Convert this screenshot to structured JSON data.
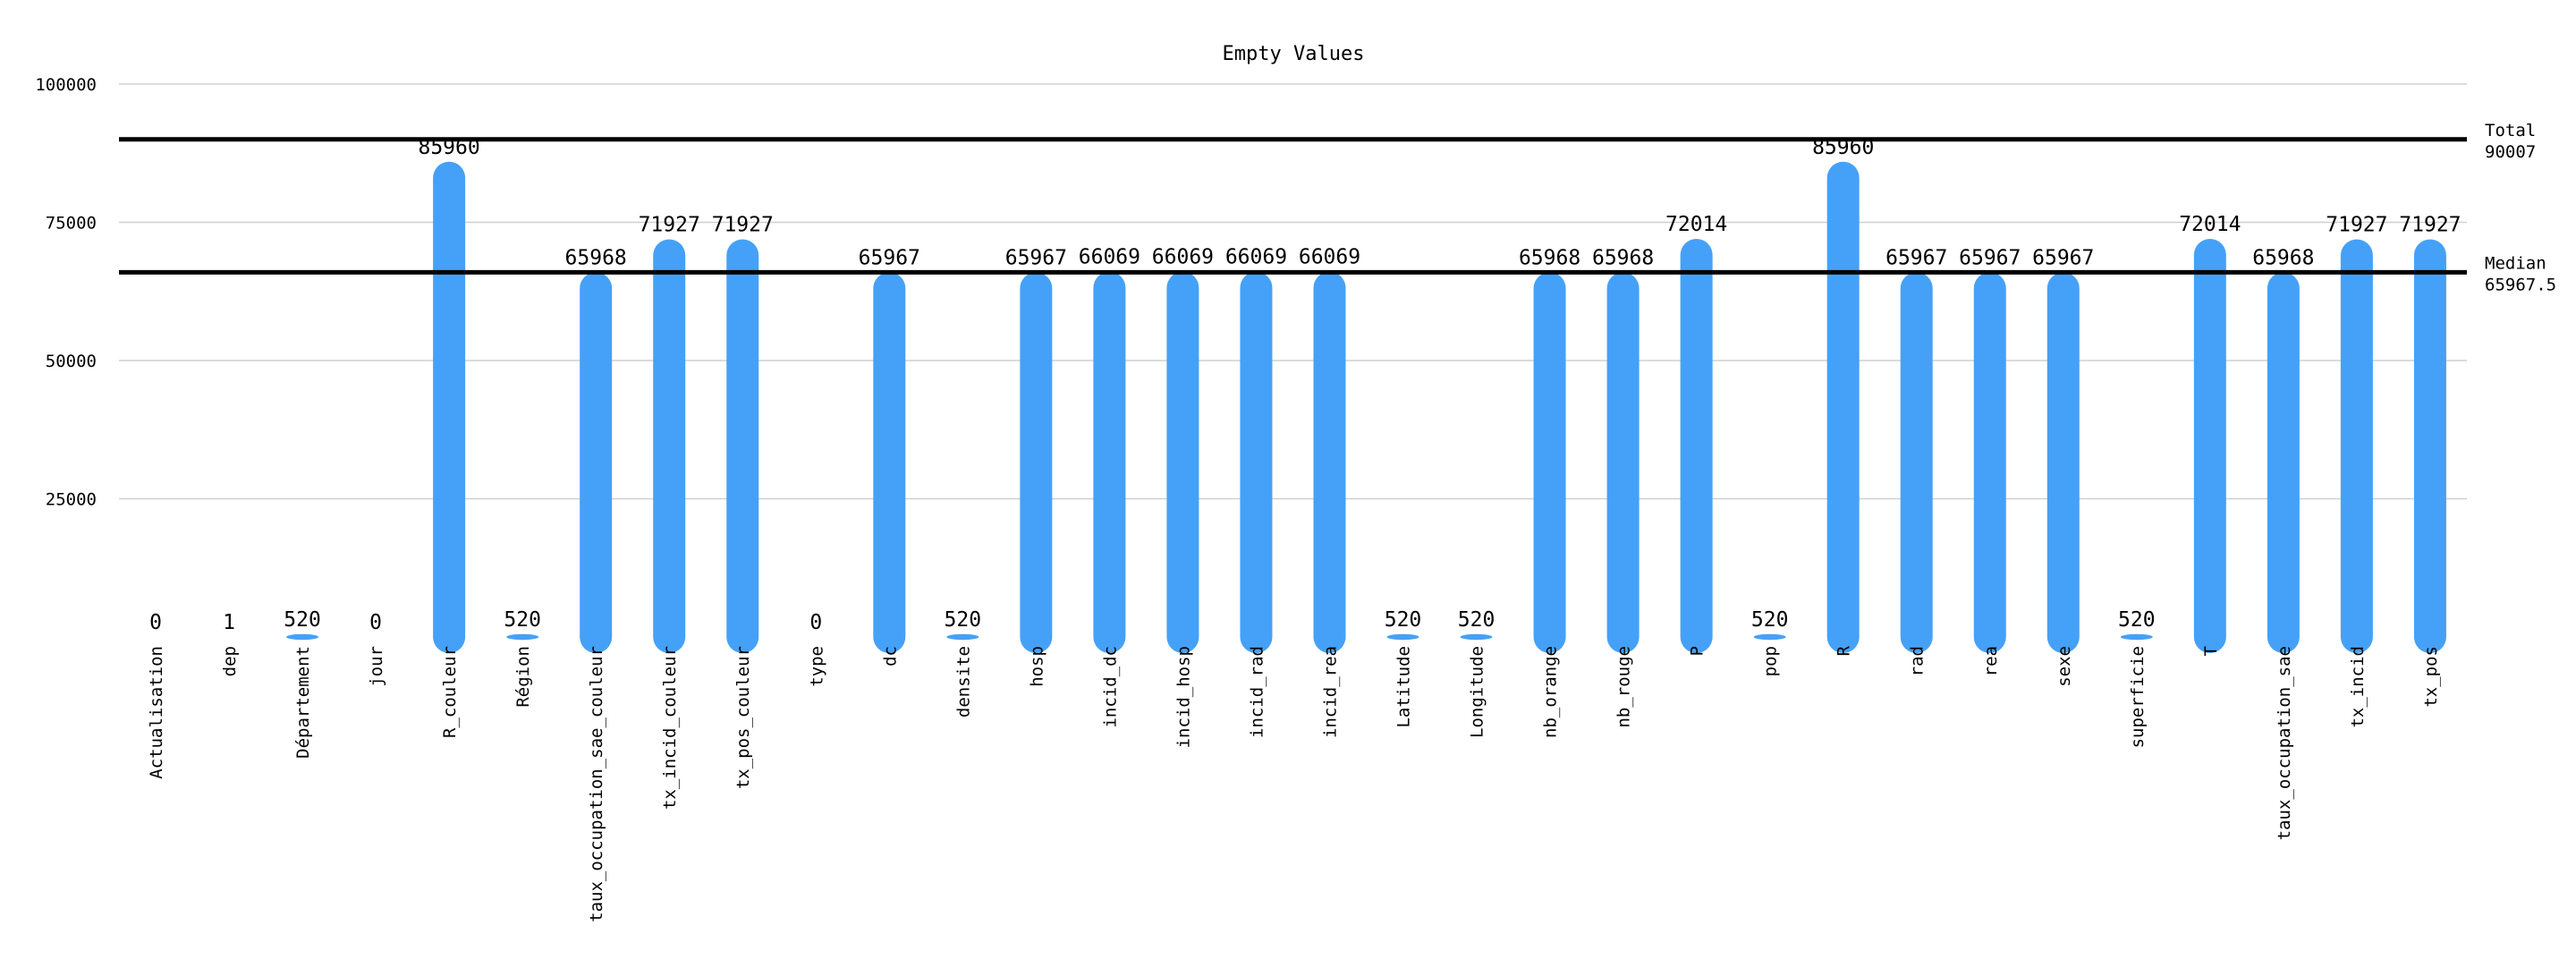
{
  "chart_data": {
    "type": "bar",
    "title": "Empty Values",
    "xlabel": "",
    "ylabel": "",
    "ylim": [
      0,
      100000
    ],
    "yticks": [
      25000,
      50000,
      75000,
      100000
    ],
    "grid": true,
    "bar_color": "#45a1f7",
    "categories": [
      "Actualisation",
      "dep",
      "Département",
      "jour",
      "R_couleur",
      "Région",
      "taux_occupation_sae_couleur",
      "tx_incid_couleur",
      "tx_pos_couleur",
      "type",
      "dc",
      "densite",
      "hosp",
      "incid_dc",
      "incid_hosp",
      "incid_rad",
      "incid_rea",
      "Latitude",
      "Longitude",
      "nb_orange",
      "nb_rouge",
      "P",
      "pop",
      "R",
      "rad",
      "rea",
      "sexe",
      "superficie",
      "T",
      "taux_occupation_sae",
      "tx_incid",
      "tx_pos"
    ],
    "values": [
      0,
      1,
      520,
      0,
      85960,
      520,
      65968,
      71927,
      71927,
      0,
      65967,
      520,
      65967,
      66069,
      66069,
      66069,
      66069,
      520,
      520,
      65968,
      65968,
      72014,
      520,
      85960,
      65967,
      65967,
      65967,
      520,
      72014,
      65968,
      71927,
      71927
    ],
    "reference_lines": [
      {
        "name": "Total",
        "value": 90007,
        "label_line1": "Total",
        "label_line2": "90007"
      },
      {
        "name": "Median",
        "value": 65967.5,
        "label_line1": "Median",
        "label_line2": "65967.5"
      }
    ]
  }
}
